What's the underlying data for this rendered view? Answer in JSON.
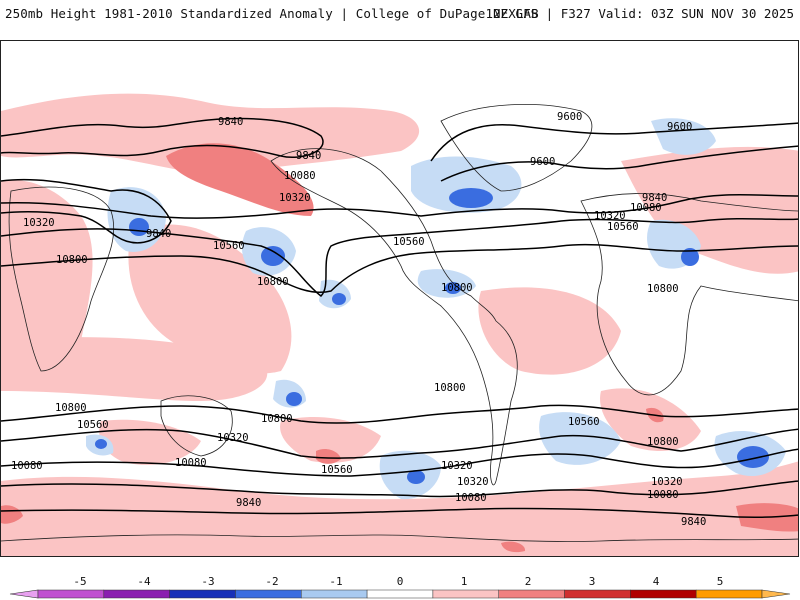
{
  "header": {
    "left": "250mb Height 1981-2010 Standardized Anomaly | College of DuPage NEXLAB",
    "right": "12Z GFS | F327 Valid: 03Z SUN NOV 30 2025"
  },
  "contour_labels": [
    "9840",
    "9840",
    "10080",
    "10320",
    "10320",
    "9840",
    "10800",
    "10560",
    "10800",
    "10560",
    "10800",
    "9600",
    "9600",
    "9600",
    "9840",
    "10080",
    "10320",
    "10560",
    "10800",
    "10800",
    "10800",
    "10560",
    "10320",
    "10080",
    "10560",
    "10320",
    "10080",
    "10800",
    "10560",
    "10320",
    "10080",
    "9840",
    "10800",
    "10320",
    "10080",
    "9840"
  ],
  "colorbar": {
    "ticks": [
      "-5",
      "-4",
      "-3",
      "-2",
      "-1",
      "0",
      "1",
      "2",
      "3",
      "4",
      "5"
    ],
    "colors": [
      "#c050d0",
      "#8a1fb0",
      "#1730b8",
      "#3a6de0",
      "#a9caf0",
      "#ffffff",
      "#fbc4c4",
      "#f08080",
      "#d03030",
      "#b00000",
      "#ff9c00"
    ]
  }
}
